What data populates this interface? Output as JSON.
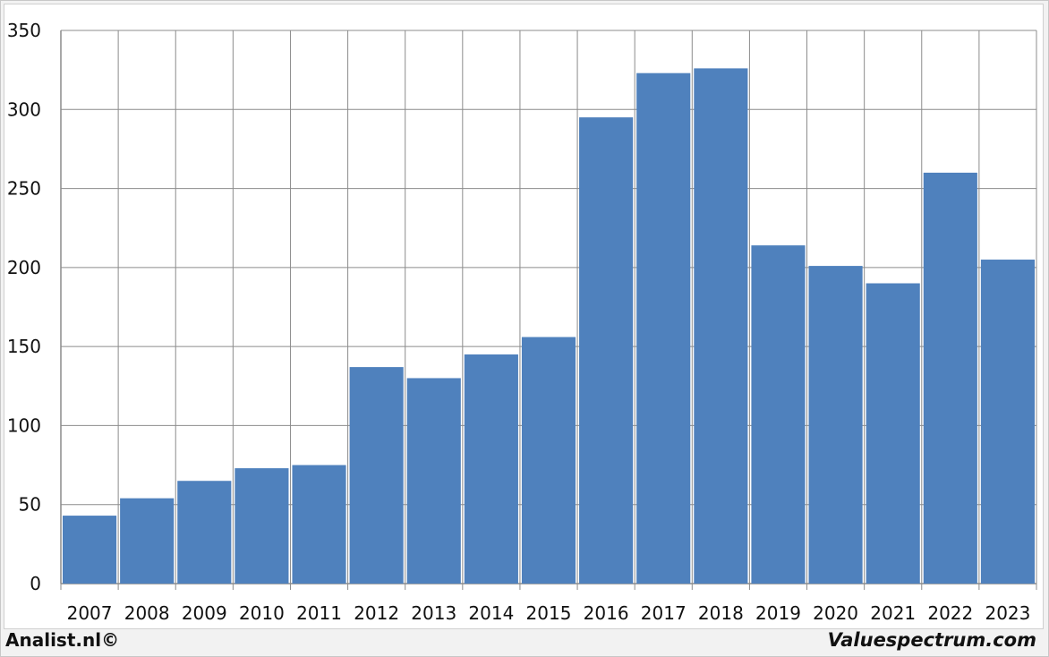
{
  "chart_data": {
    "type": "bar",
    "categories": [
      "2007",
      "2008",
      "2009",
      "2010",
      "2011",
      "2012",
      "2013",
      "2014",
      "2015",
      "2016",
      "2017",
      "2018",
      "2019",
      "2020",
      "2021",
      "2022",
      "2023"
    ],
    "values": [
      43,
      54,
      65,
      73,
      75,
      137,
      130,
      145,
      156,
      295,
      323,
      326,
      214,
      201,
      190,
      260,
      205
    ],
    "ylim": [
      0,
      350
    ],
    "yticks": [
      0,
      50,
      100,
      150,
      200,
      250,
      300,
      350
    ],
    "grid": true,
    "colors": {
      "bar": "#4F81BD",
      "grid": "#8c8c8c",
      "axis": "#8c8c8c"
    }
  },
  "footer": {
    "left": "Analist.nl©",
    "right": "Valuespectrum.com"
  }
}
